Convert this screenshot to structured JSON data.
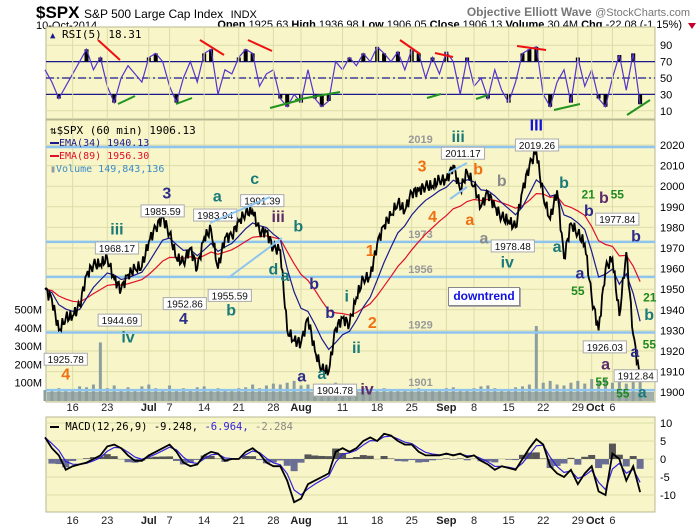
{
  "header": {
    "symbol": "$SPX",
    "name": "S&P 500 Large Cap Index",
    "exchange": "INDX",
    "brand": "Objective Elliott Wave",
    "source": "@StockCharts.com",
    "date": "10-Oct-2014",
    "open_label": "Open",
    "open": "1925.63",
    "high_label": "High",
    "high": "1936.98",
    "low_label": "Low",
    "low": "1906.05",
    "close_label": "Close",
    "close": "1906.13",
    "volume_label": "Volume",
    "volume": "30.4M",
    "chg_label": "Chg",
    "chg": "-22.08 (-1.15%)",
    "down_color": "#c0002a"
  },
  "colors": {
    "panel_bg": "#f8f6c8",
    "grid": "#dcdca8",
    "price": "#000000",
    "ema34": "#1a1a8c",
    "ema89": "#e0102a",
    "volume": "#8c9ea0",
    "level_line": "#8fc4ee",
    "rsi": "#5533cc",
    "rsi_ref": "#1a1a8c",
    "macd": "#000000",
    "signal": "#3322dd",
    "hist_pos": "#555555",
    "hist_neg": "#6a6e94",
    "orange": "#f07010",
    "navy": "#2c2c8c",
    "teal": "#1a7a7a",
    "purple": "#5a2a6a",
    "green": "#1f8a1f",
    "gray": "#8a8a8a",
    "blue": "#1010e0"
  },
  "chart_data": [
    {
      "type": "line",
      "title": "RSI(5) 18.31",
      "ylim": [
        0,
        100
      ],
      "yticks": [
        10,
        30,
        50,
        70,
        90
      ],
      "reference_lines": [
        30,
        50,
        70
      ],
      "values": [
        60,
        45,
        25,
        40,
        55,
        70,
        85,
        60,
        75,
        40,
        20,
        50,
        65,
        55,
        45,
        75,
        80,
        70,
        40,
        20,
        50,
        70,
        45,
        80,
        85,
        30,
        60,
        55,
        75,
        85,
        80,
        40,
        55,
        60,
        25,
        15,
        30,
        20,
        60,
        25,
        15,
        22,
        70,
        60,
        75,
        65,
        80,
        70,
        88,
        80,
        70,
        82,
        60,
        85,
        80,
        50,
        75,
        55,
        82,
        70,
        30,
        75,
        40,
        50,
        25,
        60,
        35,
        20,
        45,
        80,
        85,
        88,
        30,
        15,
        45,
        60,
        20,
        75,
        40,
        60,
        25,
        15,
        50,
        78,
        35,
        80,
        18
      ]
    },
    {
      "type": "line",
      "title": "$SPX (60 min) 1906.13",
      "legend": [
        {
          "label": "EMA(34) 1940.13",
          "color": "#1a1a8c"
        },
        {
          "label": "EMA(89) 1956.30",
          "color": "#e0102a"
        },
        {
          "label": "Volume 149,843,136",
          "color": "#3a8ac8"
        }
      ],
      "ylim": [
        1895,
        2025
      ],
      "yticks": [
        1900,
        1910,
        1920,
        1930,
        1940,
        1950,
        1960,
        1970,
        1980,
        1990,
        2000,
        2010,
        2020
      ],
      "volume_ticks": [
        "100M",
        "200M",
        "300M",
        "400M",
        "500M"
      ],
      "x_labels": [
        {
          "d": 4,
          "t": "16",
          "bold": false
        },
        {
          "d": 9,
          "t": "23",
          "bold": false
        },
        {
          "d": 15,
          "t": "Jul",
          "bold": true
        },
        {
          "d": 18,
          "t": "7",
          "bold": false
        },
        {
          "d": 23,
          "t": "14",
          "bold": false
        },
        {
          "d": 28,
          "t": "21",
          "bold": false
        },
        {
          "d": 33,
          "t": "28",
          "bold": false
        },
        {
          "d": 37,
          "t": "Aug",
          "bold": true
        },
        {
          "d": 43,
          "t": "11",
          "bold": false
        },
        {
          "d": 48,
          "t": "18",
          "bold": false
        },
        {
          "d": 53,
          "t": "25",
          "bold": false
        },
        {
          "d": 58,
          "t": "Sep",
          "bold": true
        },
        {
          "d": 62,
          "t": "8",
          "bold": false
        },
        {
          "d": 67,
          "t": "15",
          "bold": false
        },
        {
          "d": 72,
          "t": "22",
          "bold": false
        },
        {
          "d": 77,
          "t": "29",
          "bold": false
        },
        {
          "d": 79,
          "t": "Oct",
          "bold": true
        },
        {
          "d": 82,
          "t": "6",
          "bold": false
        }
      ],
      "close": [
        1950,
        1945,
        1930,
        1936,
        1937,
        1942,
        1957,
        1962,
        1962,
        1965,
        1955,
        1950,
        1957,
        1960,
        1961,
        1973,
        1980,
        1985,
        1977,
        1965,
        1963,
        1970,
        1960,
        1975,
        1979,
        1960,
        1975,
        1976,
        1983,
        1987,
        1988,
        1978,
        1978,
        1970,
        1969,
        1930,
        1925,
        1924,
        1936,
        1920,
        1911,
        1910,
        1931,
        1936,
        1933,
        1946,
        1955,
        1956,
        1972,
        1981,
        1986,
        1992,
        1988,
        1997,
        1998,
        2000,
        2000,
        2003,
        2003,
        2010,
        1998,
        2007,
        2000,
        1990,
        1997,
        1990,
        1985,
        1983,
        1980,
        1998,
        2010,
        2017,
        1995,
        1984,
        1998,
        1965,
        1982,
        1977,
        1972,
        1946,
        1930,
        1960,
        1965,
        1937,
        1968,
        1928,
        1906
      ],
      "volume_m": [
        60,
        55,
        70,
        65,
        60,
        80,
        75,
        90,
        320,
        70,
        85,
        60,
        75,
        65,
        80,
        90,
        70,
        60,
        85,
        65,
        70,
        60,
        75,
        80,
        60,
        70,
        65,
        60,
        70,
        75,
        90,
        70,
        85,
        95,
        90,
        100,
        110,
        85,
        90,
        80,
        95,
        75,
        100,
        70,
        65,
        60,
        70,
        65,
        60,
        70,
        55,
        60,
        65,
        60,
        70,
        60,
        65,
        60,
        70,
        75,
        60,
        65,
        70,
        80,
        85,
        70,
        65,
        60,
        75,
        80,
        90,
        410,
        100,
        110,
        90,
        85,
        100,
        110,
        95,
        120,
        110,
        120,
        100,
        115,
        95,
        110,
        105
      ],
      "levels": [
        {
          "value": 2019,
          "label": "2019"
        },
        {
          "value": 1973,
          "label": "1973"
        },
        {
          "value": 1956,
          "label": "1956"
        },
        {
          "value": 1929,
          "label": "1929"
        },
        {
          "value": 1901,
          "label": "1901"
        }
      ],
      "price_labels": [
        {
          "d": 3,
          "p": 1916,
          "t": "1925.78"
        },
        {
          "d": 10.4,
          "p": 1970,
          "t": "1968.17"
        },
        {
          "d": 17,
          "p": 1988,
          "t": "1985.59"
        },
        {
          "d": 10.8,
          "p": 1935,
          "t": "1944.69"
        },
        {
          "d": 20.2,
          "p": 1943,
          "t": "1952.86"
        },
        {
          "d": 24.6,
          "p": 1986,
          "t": "1983.94"
        },
        {
          "d": 26.7,
          "p": 1947,
          "t": "1955.59"
        },
        {
          "d": 31.4,
          "p": 1993,
          "t": "1991.39"
        },
        {
          "d": 41.9,
          "p": 1901,
          "t": "1904.78"
        },
        {
          "d": 60.4,
          "p": 2016,
          "t": "2011.17"
        },
        {
          "d": 67.6,
          "p": 1971,
          "t": "1978.48"
        },
        {
          "d": 71.1,
          "p": 2020,
          "t": "2019.26"
        },
        {
          "d": 82.7,
          "p": 1984,
          "t": "1977.84"
        },
        {
          "d": 80.9,
          "p": 1922,
          "t": "1926.03"
        },
        {
          "d": 87.1,
          "p": 1908,
          "t": "1912.84"
        }
      ],
      "annotations": [
        {
          "t": "4",
          "c": "orange",
          "d": 3,
          "p": 1912
        },
        {
          "t": "1",
          "c": "orange",
          "d": 47,
          "p": 1969
        },
        {
          "t": "2",
          "c": "orange",
          "d": 47.3,
          "p": 1934
        },
        {
          "t": "3",
          "c": "orange",
          "d": 54.5,
          "p": 2010
        },
        {
          "t": "4",
          "c": "orange",
          "d": 56,
          "p": 1984
        },
        {
          "t": "a",
          "c": "orange",
          "d": 61.4,
          "p": 1984
        },
        {
          "t": "b",
          "c": "orange",
          "d": 62.6,
          "p": 2013
        },
        {
          "t": "3",
          "c": "navy",
          "d": 17.6,
          "p": 1997
        },
        {
          "t": "4",
          "c": "navy",
          "d": 20,
          "p": 1936
        },
        {
          "t": "iii",
          "c": "teal",
          "d": 10.4,
          "p": 1978
        },
        {
          "t": "iv",
          "c": "teal",
          "d": 12,
          "p": 1930
        },
        {
          "t": "a",
          "c": "teal",
          "d": 24.9,
          "p": 1994
        },
        {
          "t": "c",
          "c": "teal",
          "d": 30.3,
          "p": 2004
        },
        {
          "t": "iii",
          "c": "purple",
          "d": 33.7,
          "p": 1990
        },
        {
          "t": "b",
          "c": "teal",
          "d": 36.6,
          "p": 1981
        },
        {
          "t": "d",
          "c": "teal",
          "d": 33,
          "p": 1960
        },
        {
          "t": "a",
          "c": "teal",
          "d": 34.7,
          "p": 1957
        },
        {
          "t": "b",
          "c": "navy",
          "d": 38.9,
          "p": 1953
        },
        {
          "t": "b",
          "c": "teal",
          "d": 26.9,
          "p": 1943
        },
        {
          "t": "b",
          "c": "navy",
          "d": 41.2,
          "p": 1939
        },
        {
          "t": "i",
          "c": "teal",
          "d": 43.6,
          "p": 1947
        },
        {
          "t": "ii",
          "c": "teal",
          "d": 45,
          "p": 1922
        },
        {
          "t": "a",
          "c": "navy",
          "d": 37.1,
          "p": 1908
        },
        {
          "t": "a",
          "c": "teal",
          "d": 40,
          "p": 1905
        },
        {
          "t": "iv",
          "c": "purple",
          "d": 44.8,
          "p": 1896
        },
        {
          "t": "iii",
          "c": "teal",
          "d": 59.7,
          "p": 2023
        },
        {
          "t": "b",
          "c": "gray",
          "d": 66,
          "p": 2003
        },
        {
          "t": "a",
          "c": "gray",
          "d": 64.3,
          "p": 1975
        },
        {
          "t": "iv",
          "c": "teal",
          "d": 66.8,
          "p": 1965
        },
        {
          "t": "III",
          "c": "blue",
          "d": 71,
          "p": 2030
        },
        {
          "t": "b",
          "c": "teal",
          "d": 75,
          "p": 2002
        },
        {
          "t": "21",
          "c": "green",
          "d": 78.5,
          "p": 1997
        },
        {
          "t": "a",
          "c": "teal",
          "d": 74,
          "p": 1971
        },
        {
          "t": "55",
          "c": "green",
          "d": 82.7,
          "p": 1997
        },
        {
          "t": "b",
          "c": "navy",
          "d": 78.6,
          "p": 1990
        },
        {
          "t": "b",
          "c": "purple",
          "d": 82.5,
          "p": 1989
        },
        {
          "t": "b",
          "c": "navy",
          "d": 85.4,
          "p": 1976
        },
        {
          "t": "a",
          "c": "navy",
          "d": 77.3,
          "p": 1958
        },
        {
          "t": "55",
          "c": "green",
          "d": 77,
          "p": 1950
        },
        {
          "t": "21",
          "c": "green",
          "d": 87.4,
          "p": 1947
        },
        {
          "t": "b",
          "c": "teal",
          "d": 87.3,
          "p": 1938
        },
        {
          "t": "a",
          "c": "purple",
          "d": 81,
          "p": 1914
        },
        {
          "t": "a",
          "c": "navy",
          "d": 84.8,
          "p": 1920
        },
        {
          "t": "55",
          "c": "green",
          "d": 84.3,
          "p": 1914
        },
        {
          "t": "55",
          "c": "green",
          "d": 80.5,
          "p": 1906
        },
        {
          "t": "55",
          "c": "green",
          "d": 83.5,
          "p": 1899
        },
        {
          "t": "a",
          "c": "teal",
          "d": 86.3,
          "p": 1899
        }
      ],
      "box_label": "downtrend"
    },
    {
      "type": "line",
      "title": "MACD(12,26,9)",
      "readout": {
        "macd": "-9.248,",
        "signal": "-6.964,",
        "hist": "-2.284"
      },
      "ylim": [
        -15,
        12
      ],
      "yticks": [
        10,
        5,
        0,
        -5,
        -10
      ],
      "ytick_labels": [
        "10",
        "5",
        "0",
        "-5",
        "-10"
      ],
      "macd": [
        6,
        3,
        1,
        -3,
        -2,
        -1.5,
        -1,
        0,
        1,
        3.5,
        4,
        3,
        1,
        -0.5,
        -0.5,
        1,
        2,
        3,
        4,
        2,
        -1,
        -2,
        -1.5,
        1,
        2,
        1.5,
        -0.5,
        0,
        0,
        2,
        3,
        1.5,
        -1,
        -2,
        -2,
        -6,
        -12,
        -11,
        -7,
        -6,
        -5,
        -4,
        2,
        3,
        2,
        3,
        5,
        6,
        5,
        7,
        6.5,
        5,
        4,
        4,
        2,
        1,
        1,
        1,
        1.5,
        1,
        1.5,
        0.5,
        1,
        -0.5,
        -1.5,
        -3,
        -2,
        -2.5,
        -3,
        0,
        3,
        5.5,
        4,
        -2,
        -4,
        -5,
        -3,
        -7,
        -4,
        -2,
        -9,
        -10,
        1.5,
        0,
        -6,
        -2,
        -9.2
      ]
    }
  ]
}
